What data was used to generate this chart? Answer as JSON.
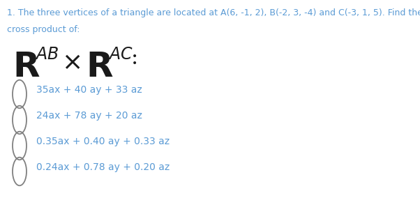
{
  "question_text_line1": "1. The three vertices of a triangle are located at A(6, -1, 2), B(-2, 3, -4) and C(-3, 1, 5). Find the",
  "question_text_line2": "cross product of:",
  "options": [
    "35ax + 40 ay + 33 az",
    "24ax + 78 ay + 20 az",
    "0.35ax + 0.40 ay + 0.33 az",
    "0.24ax + 0.78 ay + 0.20 az"
  ],
  "bg_color": "#ffffff",
  "text_color": "#1a1a1a",
  "question_color": "#5b9bd5",
  "option_text_color": "#5b9bd5",
  "circle_color": "#808080",
  "font_size_question": 9.0,
  "font_size_options": 10.0,
  "fig_width": 6.02,
  "fig_height": 2.97,
  "dpi": 100
}
